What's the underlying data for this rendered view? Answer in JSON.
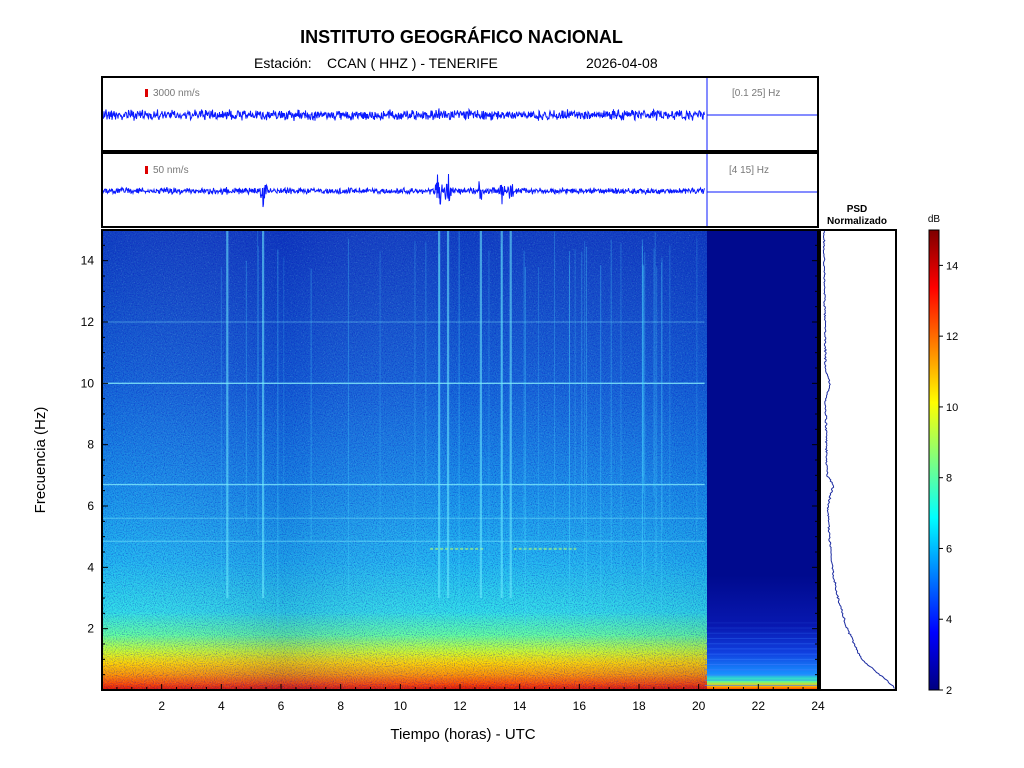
{
  "header": {
    "title": "INSTITUTO GEOGRÁFICO NACIONAL",
    "station_label": "Estación:",
    "station_value": "CCAN ( HHZ ) - TENERIFE",
    "date": "2026-04-08"
  },
  "panels": {
    "trace1": {
      "scale": "3000 nm/s",
      "band": "[0.1 25] Hz"
    },
    "trace2": {
      "scale": "50 nm/s",
      "band": "[4 15] Hz"
    },
    "psd": {
      "title_line1": "PSD",
      "title_line2": "Normalizado"
    },
    "colorbar": {
      "unit": "dB"
    }
  },
  "colors": {
    "trace": "#0a1aff",
    "scale_marker": "#dd0000",
    "colormap": [
      "#00007f",
      "#0000ff",
      "#007fff",
      "#00ffff",
      "#7fff7f",
      "#ffff00",
      "#ff7f00",
      "#ff0000",
      "#7f0000"
    ]
  },
  "chart_data": {
    "type": "heatmap",
    "xlabel": "Tiempo (horas) - UTC",
    "ylabel": "Frecuencia  (Hz)",
    "xlim": [
      0,
      24
    ],
    "ylim": [
      0,
      15
    ],
    "x_ticks": [
      2,
      4,
      6,
      8,
      10,
      12,
      14,
      16,
      18,
      20,
      22,
      24
    ],
    "y_ticks": [
      2,
      4,
      6,
      8,
      10,
      12,
      14
    ],
    "data_end_hour": 20.2,
    "color_scale": {
      "min": 2,
      "max": 15,
      "ticks": [
        2,
        4,
        6,
        8,
        10,
        12,
        14
      ],
      "unit": "dB"
    },
    "events_hours": [
      4.2,
      5.4,
      11.3,
      11.6,
      12.7,
      13.4,
      13.7
    ],
    "psd_profile": [
      {
        "freq": 0.1,
        "value": 1.0
      },
      {
        "freq": 0.5,
        "value": 0.8
      },
      {
        "freq": 1.0,
        "value": 0.55
      },
      {
        "freq": 2.0,
        "value": 0.35
      },
      {
        "freq": 3.0,
        "value": 0.22
      },
      {
        "freq": 4.0,
        "value": 0.14
      },
      {
        "freq": 5.0,
        "value": 0.1
      },
      {
        "freq": 6.0,
        "value": 0.08
      },
      {
        "freq": 6.7,
        "value": 0.16
      },
      {
        "freq": 7.0,
        "value": 0.07
      },
      {
        "freq": 8.0,
        "value": 0.06
      },
      {
        "freq": 9.5,
        "value": 0.05
      },
      {
        "freq": 10.0,
        "value": 0.11
      },
      {
        "freq": 10.5,
        "value": 0.05
      },
      {
        "freq": 12.0,
        "value": 0.04
      },
      {
        "freq": 14.0,
        "value": 0.03
      },
      {
        "freq": 15.0,
        "value": 0.03
      }
    ]
  }
}
